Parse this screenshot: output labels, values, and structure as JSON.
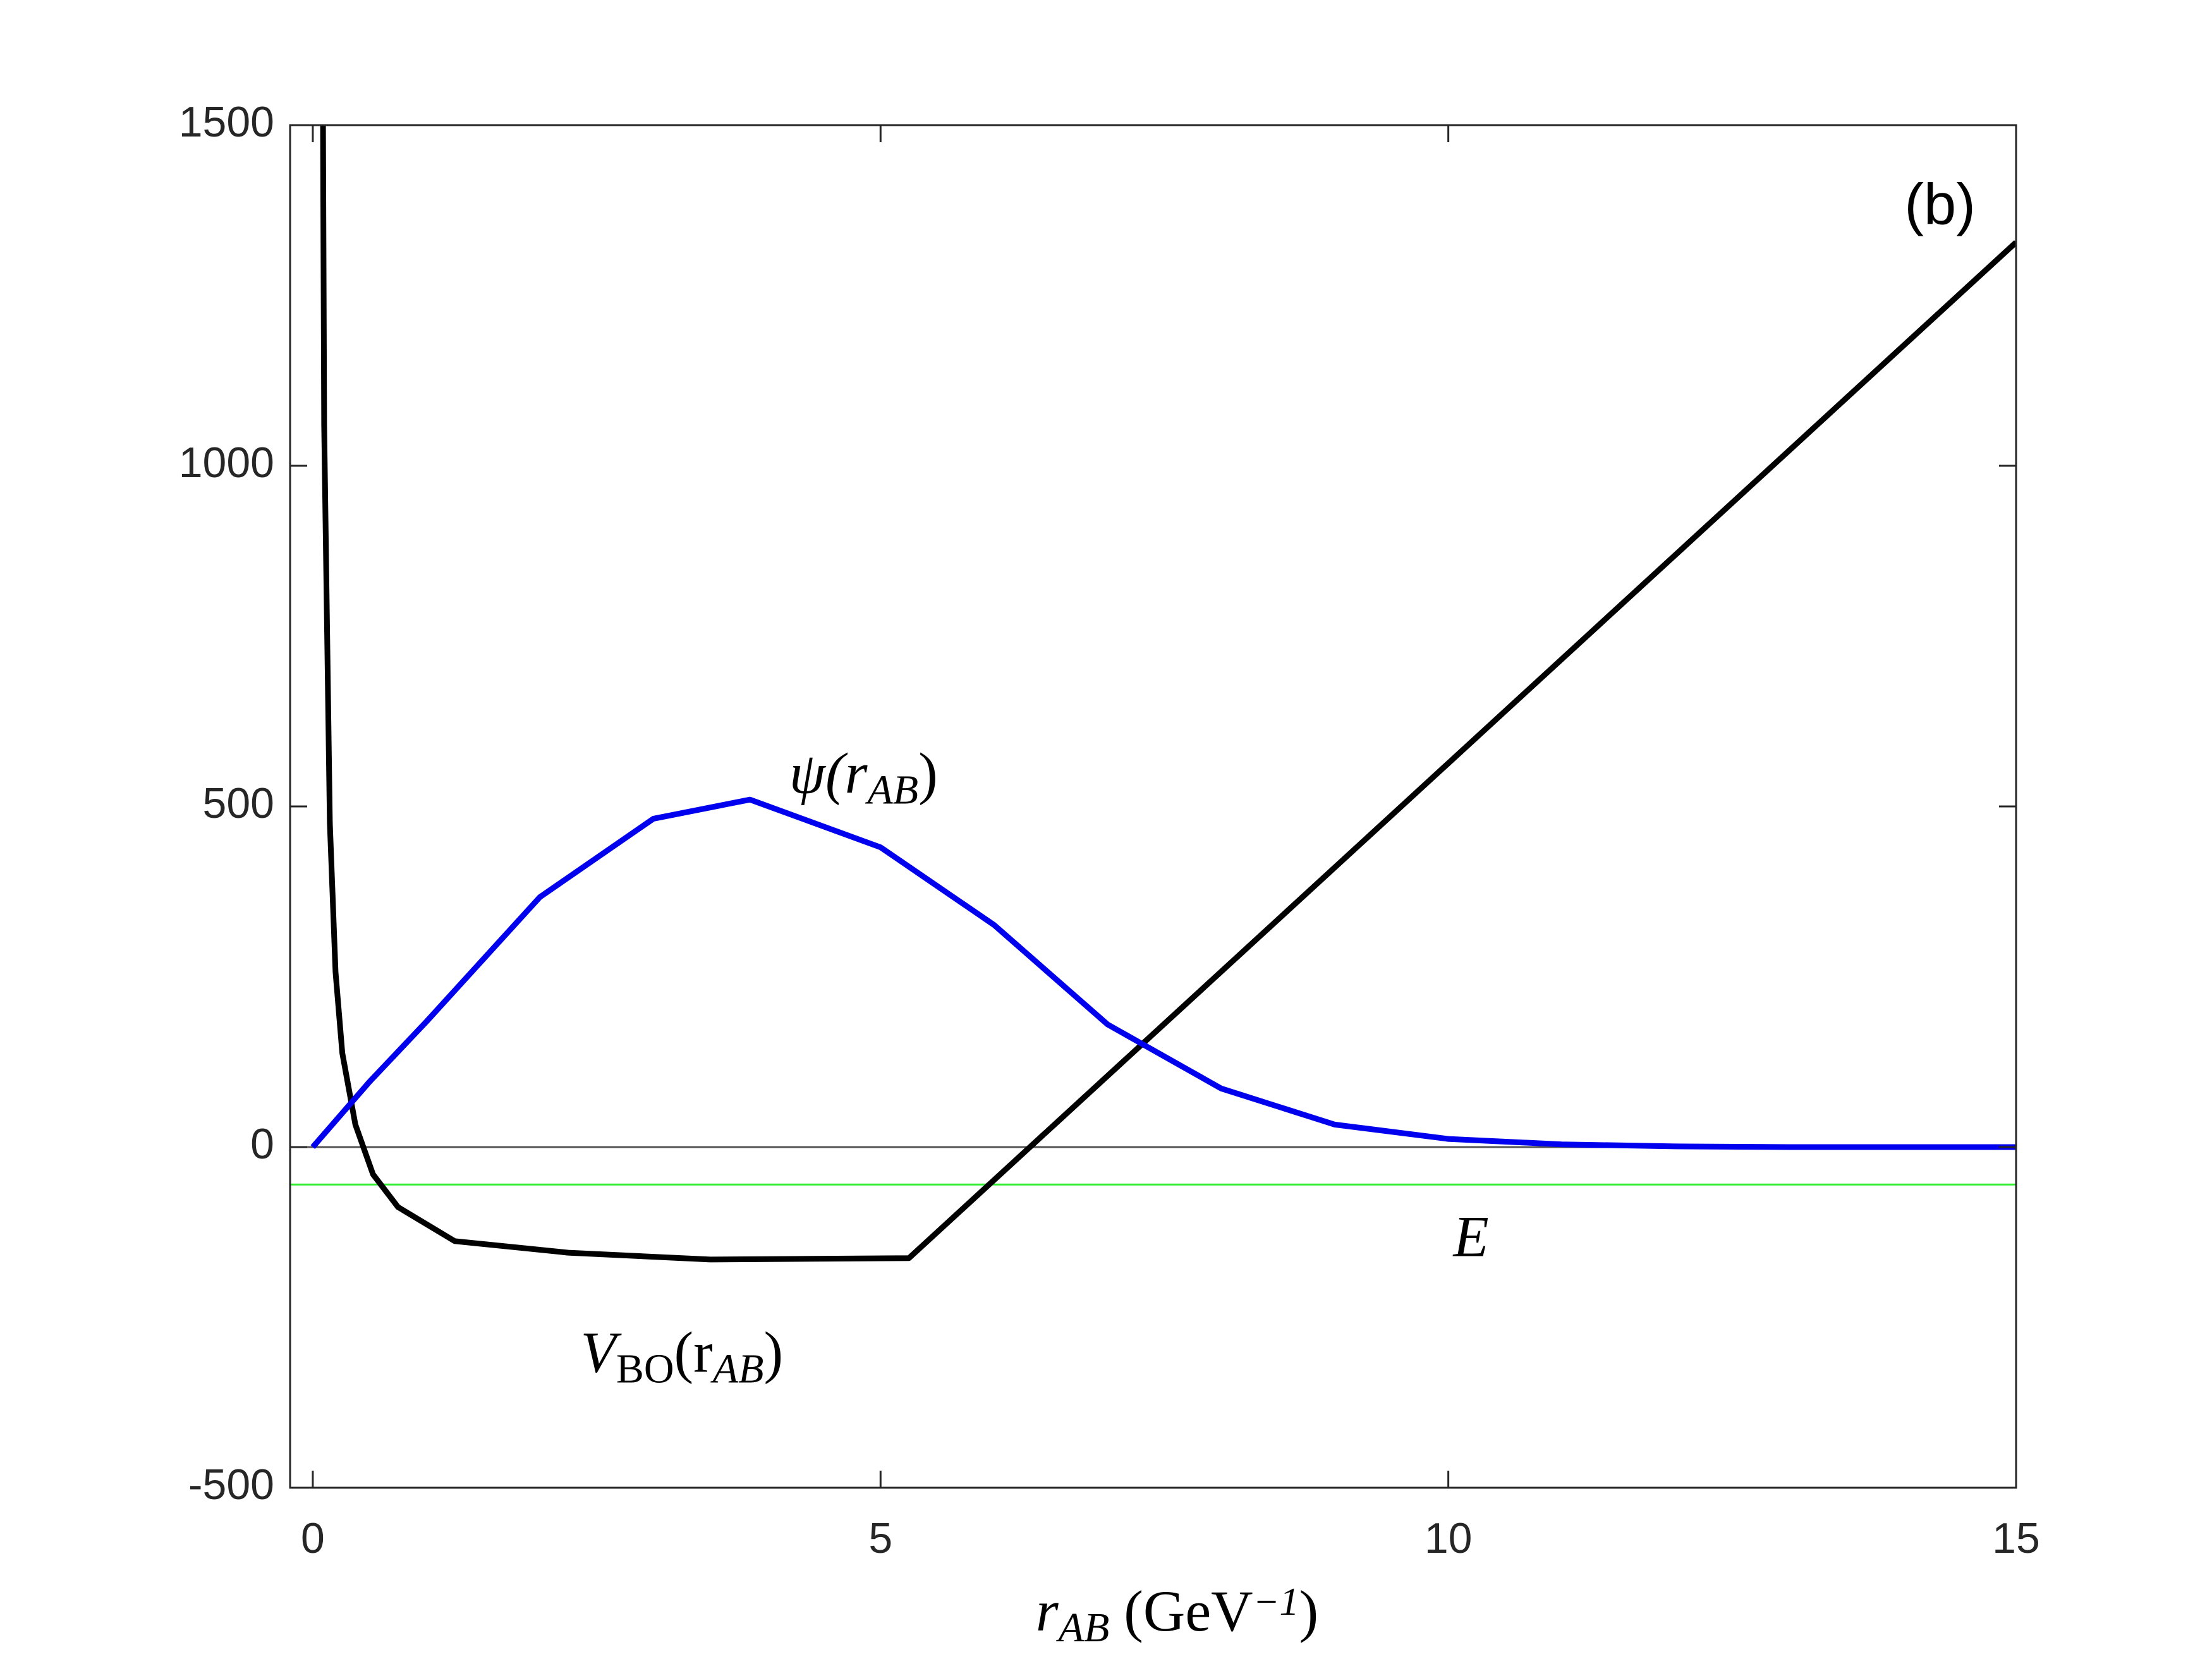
{
  "chart_data": {
    "type": "line",
    "xlim": [
      -0.2,
      15
    ],
    "ylim": [
      -500,
      1500
    ],
    "xticks": [
      0,
      5,
      10,
      15
    ],
    "yticks": [
      -500,
      0,
      500,
      1000,
      1500
    ],
    "xlabel": [
      {
        "t": "r"
      },
      {
        "t": "AB",
        "sub": true
      },
      {
        "t": " (GeV"
      },
      {
        "t": "−1",
        "sup": true
      },
      {
        "t": ")"
      }
    ],
    "series": [
      {
        "color": "#000000",
        "x": [
          0.09,
          0.1,
          0.15,
          0.2,
          0.26,
          0.375,
          0.53,
          0.75,
          1.25,
          2.25,
          3.5,
          5.25,
          15
        ],
        "values": [
          1500,
          1060,
          476,
          257,
          138,
          33,
          -40,
          -88,
          -138,
          -155,
          -165,
          -163,
          1328
        ]
      },
      {
        "color": "#0000ee",
        "x": [
          0,
          0.5,
          1,
          2,
          3,
          3.85,
          5,
          6,
          7,
          8,
          9,
          10,
          11,
          12,
          13,
          15
        ],
        "values": [
          0,
          96,
          184,
          367,
          482,
          510,
          440,
          326,
          180,
          86,
          33,
          12,
          4,
          1,
          0,
          0
        ]
      }
    ],
    "reference_lines": [
      {
        "y": 0,
        "color": "#555555"
      },
      {
        "y": -55,
        "color": "#33ee33"
      }
    ],
    "annotations": [
      [
        {
          "t": "ψ(r"
        },
        {
          "t": "AB",
          "sub": true
        },
        {
          "t": ")"
        }
      ],
      [
        {
          "t": "V"
        },
        {
          "t": "BO",
          "sub": true,
          "upright": true
        },
        {
          "t": "(r"
        },
        {
          "t": "AB",
          "sub": true
        },
        {
          "t": ")"
        }
      ],
      [
        {
          "t": "E"
        }
      ],
      [
        {
          "t": "(b)",
          "upright": true
        }
      ]
    ]
  }
}
